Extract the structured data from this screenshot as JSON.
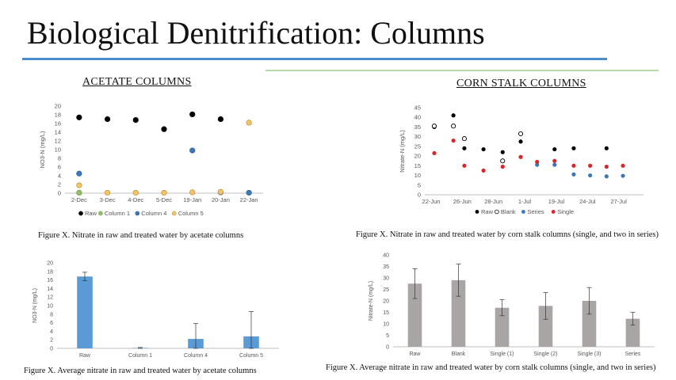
{
  "slide": {
    "title": "Biological Denitrification: Columns",
    "section_left": "ACETATE COLUMNS",
    "section_right": "CORN STALK COLUMNS",
    "accent_blue": "#4a8ccc",
    "accent_green": "#b9d8a8"
  },
  "captions": {
    "c1": "Figure X. Nitrate in raw and treated water by acetate columns",
    "c2": "Figure X. Nitrate in raw and treated water by corn stalk columns (single, and two in series)",
    "c3": "Figure X. Average nitrate in raw and treated water by acetate columns",
    "c4": "Figure X. Average nitrate in raw and treated water by corn stalk columns (single, and two in series)"
  },
  "chart_data": [
    {
      "id": "acetate_scatter",
      "type": "scatter",
      "ylabel": "NO3-N (mg/L)",
      "ylim": [
        0,
        20
      ],
      "yticks": [
        "0",
        "2",
        "4",
        "6",
        "8",
        "10",
        "12",
        "14",
        "16",
        "18",
        "20"
      ],
      "categories": [
        "2-Dec",
        "3-Dec",
        "4-Dec",
        "5-Dec",
        "19-Jan",
        "20-Jan",
        "22-Jan"
      ],
      "legend_position": "bottom",
      "series": [
        {
          "name": "Raw",
          "color": "#000000",
          "stroke": "#000000",
          "values": [
            17.4,
            17.0,
            16.8,
            14.7,
            18.1,
            17.0,
            null
          ]
        },
        {
          "name": "Column 1",
          "color": "#8fbf6a",
          "stroke": "#6a9a4a",
          "values": [
            0.1,
            null,
            null,
            null,
            null,
            null,
            null
          ]
        },
        {
          "name": "Column 4",
          "color": "#3d78b5",
          "stroke": "#2d5f95",
          "values": [
            4.5,
            null,
            null,
            null,
            9.8,
            0.2,
            0.1
          ]
        },
        {
          "name": "Column 5",
          "color": "#f2c46a",
          "stroke": "#b98a2a",
          "values": [
            1.8,
            0.1,
            0.1,
            0.1,
            0.2,
            0.3,
            16.2
          ]
        }
      ]
    },
    {
      "id": "corn_scatter",
      "type": "scatter",
      "ylabel": "Nitrate-N (mg/L)",
      "ylim": [
        0,
        45
      ],
      "yticks": [
        "0",
        "5",
        "10",
        "15",
        "20",
        "25",
        "30",
        "35",
        "40",
        "45"
      ],
      "xlim": [
        0,
        40
      ],
      "xticks": [
        {
          "x": 0,
          "label": "22-Jun"
        },
        {
          "x": 4,
          "label": "26-Jun"
        },
        {
          "x": 6,
          "label": "28-Jun"
        },
        {
          "x": 9,
          "label": "1-Jul"
        },
        {
          "x": 27,
          "label": "19-Jul"
        },
        {
          "x": 32,
          "label": "24-Jul"
        },
        {
          "x": 35,
          "label": "27-Jul"
        }
      ],
      "xtick_slots": [
        0,
        5.7,
        11.4,
        17.1,
        22.9,
        28.6,
        34.3
      ],
      "legend_position": "bottom",
      "series": [
        {
          "name": "Raw",
          "marker": "filled",
          "color": "#000000",
          "points": [
            [
              0,
              35
            ],
            [
              3.5,
              41
            ],
            [
              5.5,
              24
            ],
            [
              9,
              23.5
            ],
            [
              12.5,
              22
            ],
            [
              15.8,
              27.5
            ],
            [
              22,
              23.5
            ],
            [
              25.5,
              24
            ],
            [
              31.5,
              24
            ]
          ]
        },
        {
          "name": "Blank",
          "marker": "open",
          "color": "#000000",
          "points": [
            [
              0,
              35.5
            ],
            [
              3.5,
              35.5
            ],
            [
              5.5,
              29
            ],
            [
              12.5,
              17.5
            ],
            [
              15.8,
              31.5
            ]
          ]
        },
        {
          "name": "Series",
          "marker": "filled",
          "color": "#3d78b5",
          "points": [
            [
              18.8,
              15.5
            ],
            [
              22,
              15.5
            ],
            [
              25.5,
              10.5
            ],
            [
              28.5,
              10
            ],
            [
              31.5,
              9.5
            ],
            [
              34.5,
              9.8
            ]
          ]
        },
        {
          "name": "Single",
          "marker": "filled",
          "color": "#d9252b",
          "points": [
            [
              0,
              21.5
            ],
            [
              3.5,
              28
            ],
            [
              5.5,
              15
            ],
            [
              9,
              12.5
            ],
            [
              12.5,
              14.5
            ],
            [
              15.8,
              19.5
            ],
            [
              18.8,
              17
            ],
            [
              22,
              17.5
            ],
            [
              25.5,
              15
            ],
            [
              28.5,
              15
            ],
            [
              31.5,
              14.5
            ],
            [
              34.5,
              15
            ]
          ]
        }
      ]
    },
    {
      "id": "acetate_bar",
      "type": "bar",
      "ylabel": "NO3-N (mg/L)",
      "ylim": [
        0,
        20
      ],
      "yticks": [
        "0",
        "2",
        "4",
        "6",
        "8",
        "10",
        "12",
        "14",
        "16",
        "18",
        "20"
      ],
      "categories": [
        "Raw",
        "Column 1",
        "Column 4",
        "Column 5"
      ],
      "values": [
        16.8,
        0.1,
        2.2,
        2.8
      ],
      "errors": [
        1.0,
        0.1,
        3.6,
        5.8
      ],
      "color": "#5b9bd5"
    },
    {
      "id": "corn_bar",
      "type": "bar",
      "ylabel": "Nitrate-N (mg/L)",
      "ylim": [
        0,
        40
      ],
      "yticks": [
        "0",
        "5",
        "10",
        "15",
        "20",
        "25",
        "30",
        "35",
        "40"
      ],
      "categories": [
        "Raw",
        "Blank",
        "Single (1)",
        "Single (2)",
        "Single (3)",
        "Series"
      ],
      "values": [
        27.5,
        29.0,
        17.0,
        17.8,
        20.0,
        12.2
      ],
      "errors": [
        6.5,
        7.0,
        3.5,
        5.8,
        5.8,
        2.8
      ],
      "color": "#aaa5a5"
    }
  ]
}
